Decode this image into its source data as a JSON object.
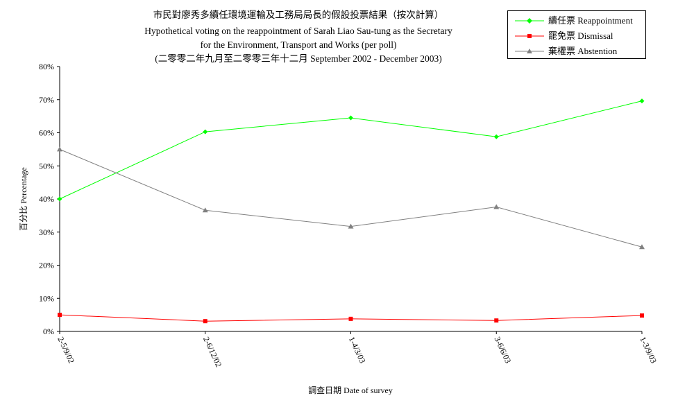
{
  "title": {
    "line1": "市民對廖秀多續任環境運輸及工務局局長的假設投票結果（按次計算）",
    "line2": "Hypothetical voting on the reappointment of Sarah Liao Sau-tung as the Secretary",
    "line3": "for the Environment, Transport and Works (per poll)",
    "line4": "(二零零二年九月至二零零三年十二月 September 2002 - December 2003)"
  },
  "chart_data": {
    "type": "line",
    "categories": [
      "2-5/9/02",
      "2-6/12/02",
      "1-4/3/03",
      "3-6/6/03",
      "1-3/9/03"
    ],
    "xlabel": "調查日期 Date of survey",
    "ylabel": "百分比 Percentage",
    "ylim": [
      0,
      80
    ],
    "yticks": [
      "0%",
      "10%",
      "20%",
      "30%",
      "40%",
      "50%",
      "60%",
      "70%",
      "80%"
    ],
    "grid": false,
    "legend_position": "top-right",
    "series": [
      {
        "name": "續任票 Reappointment",
        "color": "#00ff00",
        "marker": "diamond",
        "values": [
          40,
          60.3,
          64.5,
          58.8,
          69.6
        ]
      },
      {
        "name": "罷免票 Dismissal",
        "color": "#ff0000",
        "marker": "square",
        "values": [
          5.0,
          3.1,
          3.8,
          3.3,
          4.8
        ]
      },
      {
        "name": "棄權票 Abstention",
        "color": "#808080",
        "marker": "triangle",
        "values": [
          55,
          36.6,
          31.7,
          37.6,
          25.5
        ]
      }
    ]
  }
}
